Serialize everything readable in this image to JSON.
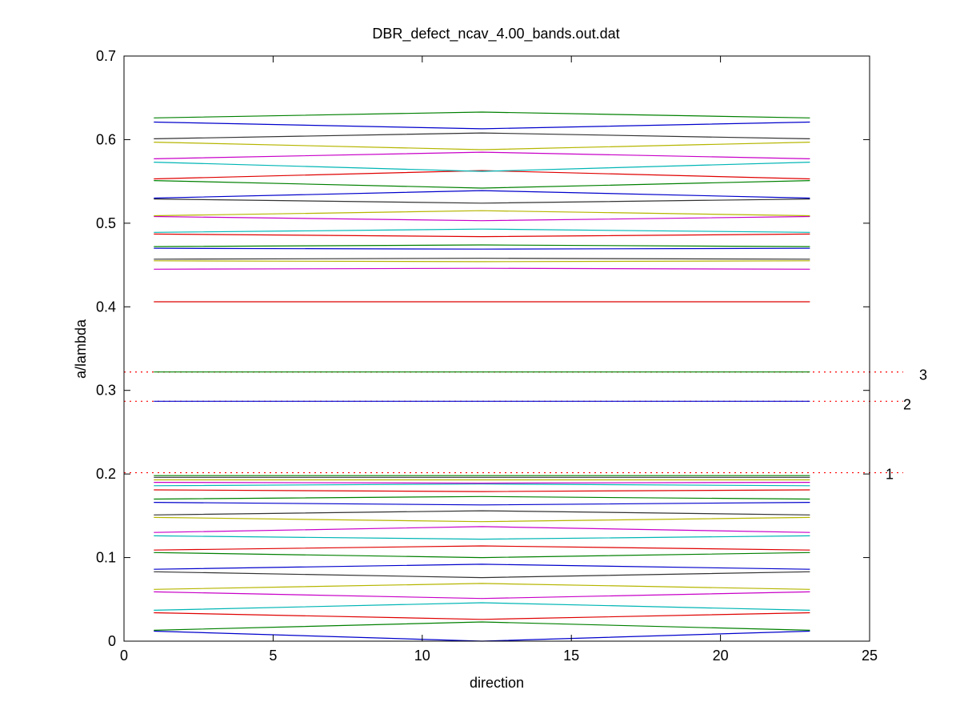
{
  "chart_data": {
    "type": "line",
    "title": "DBR_defect_ncav_4.00_bands.out.dat",
    "xlabel": "direction",
    "ylabel": "a/lambda",
    "xlim": [
      0,
      25
    ],
    "ylim": [
      0,
      0.7
    ],
    "xticks": [
      0,
      5,
      10,
      15,
      20,
      25
    ],
    "yticks": [
      0,
      0.1,
      0.2,
      0.3,
      0.4,
      0.5,
      0.6,
      0.7
    ],
    "grid": false,
    "x_range": [
      1,
      23
    ],
    "x_mid": 12,
    "colors": {
      "blue": "#0000cc",
      "green": "#008000",
      "red": "#e00000",
      "cyan": "#00b5b5",
      "magenta": "#c800c8",
      "olive": "#b5b500",
      "black": "#333333",
      "marker_red": "#ff0000"
    },
    "series": [
      {
        "values": [
          0.012,
          0.0,
          0.012
        ],
        "color": "blue"
      },
      {
        "values": [
          0.013,
          0.023,
          0.013
        ],
        "color": "green"
      },
      {
        "values": [
          0.034,
          0.026,
          0.034
        ],
        "color": "red"
      },
      {
        "values": [
          0.037,
          0.046,
          0.037
        ],
        "color": "cyan"
      },
      {
        "values": [
          0.059,
          0.051,
          0.059
        ],
        "color": "magenta"
      },
      {
        "values": [
          0.062,
          0.069,
          0.062
        ],
        "color": "olive"
      },
      {
        "values": [
          0.083,
          0.076,
          0.083
        ],
        "color": "black"
      },
      {
        "values": [
          0.086,
          0.092,
          0.086
        ],
        "color": "blue"
      },
      {
        "values": [
          0.106,
          0.1,
          0.106
        ],
        "color": "green"
      },
      {
        "values": [
          0.109,
          0.114,
          0.109
        ],
        "color": "red"
      },
      {
        "values": [
          0.126,
          0.122,
          0.126
        ],
        "color": "cyan"
      },
      {
        "values": [
          0.13,
          0.137,
          0.13
        ],
        "color": "magenta"
      },
      {
        "values": [
          0.148,
          0.143,
          0.148
        ],
        "color": "olive"
      },
      {
        "values": [
          0.151,
          0.156,
          0.151
        ],
        "color": "black"
      },
      {
        "values": [
          0.166,
          0.163,
          0.166
        ],
        "color": "blue"
      },
      {
        "values": [
          0.17,
          0.173,
          0.17
        ],
        "color": "green"
      },
      {
        "values": [
          0.181,
          0.179,
          0.181
        ],
        "color": "red"
      },
      {
        "values": [
          0.186,
          0.188,
          0.186
        ],
        "color": "cyan"
      },
      {
        "values": [
          0.19,
          0.189,
          0.19
        ],
        "color": "magenta"
      },
      {
        "values": [
          0.193,
          0.193,
          0.193
        ],
        "color": "olive"
      },
      {
        "values": [
          0.196,
          0.196,
          0.196
        ],
        "color": "black"
      },
      {
        "values": [
          0.198,
          0.198,
          0.198
        ],
        "color": "green"
      },
      {
        "values": [
          0.287,
          0.287,
          0.287
        ],
        "color": "blue"
      },
      {
        "values": [
          0.322,
          0.322,
          0.322
        ],
        "color": "green"
      },
      {
        "values": [
          0.406,
          0.406,
          0.406
        ],
        "color": "red"
      },
      {
        "values": [
          0.445,
          0.446,
          0.445
        ],
        "color": "magenta"
      },
      {
        "values": [
          0.455,
          0.454,
          0.455
        ],
        "color": "olive"
      },
      {
        "values": [
          0.457,
          0.458,
          0.457
        ],
        "color": "black"
      },
      {
        "values": [
          0.47,
          0.469,
          0.47
        ],
        "color": "blue"
      },
      {
        "values": [
          0.472,
          0.474,
          0.472
        ],
        "color": "green"
      },
      {
        "values": [
          0.487,
          0.484,
          0.487
        ],
        "color": "red"
      },
      {
        "values": [
          0.489,
          0.493,
          0.489
        ],
        "color": "cyan"
      },
      {
        "values": [
          0.508,
          0.503,
          0.508
        ],
        "color": "magenta"
      },
      {
        "values": [
          0.509,
          0.515,
          0.509
        ],
        "color": "olive"
      },
      {
        "values": [
          0.529,
          0.524,
          0.529
        ],
        "color": "black"
      },
      {
        "values": [
          0.53,
          0.539,
          0.53
        ],
        "color": "blue"
      },
      {
        "values": [
          0.551,
          0.542,
          0.551
        ],
        "color": "green"
      },
      {
        "values": [
          0.553,
          0.563,
          0.553
        ],
        "color": "red"
      },
      {
        "values": [
          0.573,
          0.562,
          0.573
        ],
        "color": "cyan"
      },
      {
        "values": [
          0.577,
          0.585,
          0.577
        ],
        "color": "magenta"
      },
      {
        "values": [
          0.597,
          0.588,
          0.597
        ],
        "color": "olive"
      },
      {
        "values": [
          0.601,
          0.608,
          0.601
        ],
        "color": "black"
      },
      {
        "values": [
          0.621,
          0.613,
          0.621
        ],
        "color": "blue"
      },
      {
        "values": [
          0.626,
          0.633,
          0.626
        ],
        "color": "green"
      }
    ],
    "reference_lines": [
      {
        "label": "1",
        "y": 0.2015
      },
      {
        "label": "2",
        "y": 0.287
      },
      {
        "label": "3",
        "y": 0.322
      }
    ]
  }
}
